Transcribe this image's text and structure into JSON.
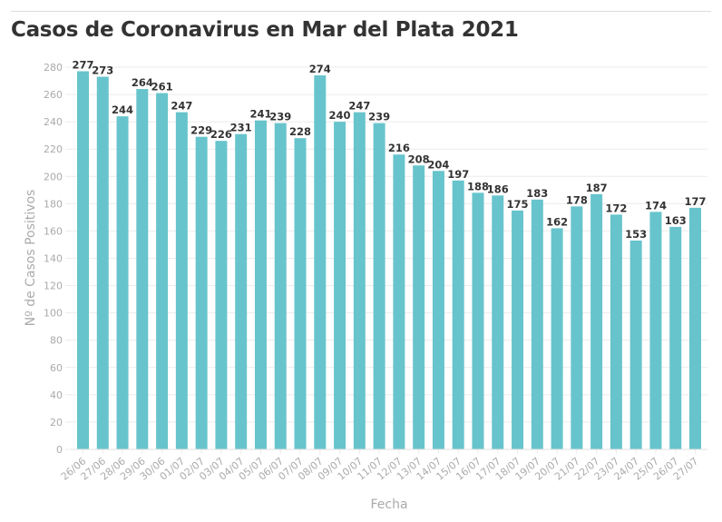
{
  "title": "Casos de Coronavirus en Mar del Plata 2021",
  "colors": {
    "bar": "#67c4cc",
    "grid": "#ebebeb",
    "axis_text": "#aaaaaa",
    "label_text": "#333333"
  },
  "chart_data": {
    "type": "bar",
    "title": "Casos de Coronavirus en Mar del Plata 2021",
    "xlabel": "Fecha",
    "ylabel": "Nº de Casos Positivos",
    "ylim": [
      0,
      280
    ],
    "yticks": [
      0,
      20,
      40,
      60,
      80,
      100,
      120,
      140,
      160,
      180,
      200,
      220,
      240,
      260,
      280
    ],
    "grid": true,
    "legend": null,
    "categories": [
      "26/06",
      "27/06",
      "28/06",
      "29/06",
      "30/06",
      "01/07",
      "02/07",
      "03/07",
      "04/07",
      "05/07",
      "06/07",
      "07/07",
      "08/07",
      "09/07",
      "10/07",
      "11/07",
      "12/07",
      "13/07",
      "14/07",
      "15/07",
      "16/07",
      "17/07",
      "18/07",
      "19/07",
      "20/07",
      "21/07",
      "22/07",
      "23/07",
      "24/07",
      "25/07",
      "26/07",
      "27/07"
    ],
    "values": [
      277,
      273,
      244,
      264,
      261,
      247,
      229,
      226,
      231,
      241,
      239,
      228,
      274,
      240,
      247,
      239,
      216,
      208,
      204,
      197,
      188,
      186,
      175,
      183,
      162,
      178,
      187,
      172,
      153,
      174,
      163,
      177
    ]
  }
}
